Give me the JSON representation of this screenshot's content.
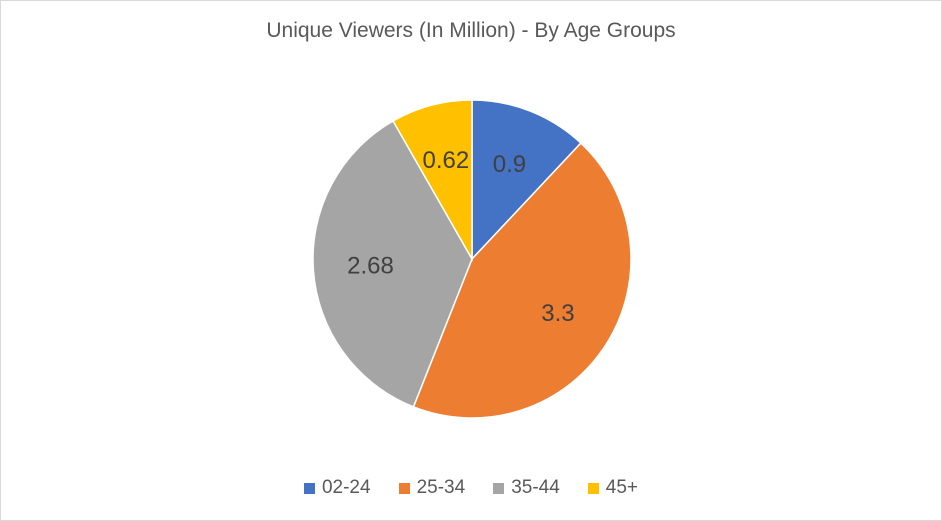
{
  "chart_data": {
    "type": "pie",
    "title": "Unique Viewers (In Million) - By Age Groups",
    "categories": [
      "02-24",
      "25-34",
      "35-44",
      "45+"
    ],
    "values": [
      0.9,
      3.3,
      2.68,
      0.62
    ],
    "labels": [
      "0.9",
      "3.3",
      "2.68",
      "0.62"
    ],
    "colors": [
      "#4472C4",
      "#ED7D31",
      "#A5A5A5",
      "#FFC000"
    ],
    "legend_position": "bottom",
    "start_angle": "top",
    "direction": "clockwise"
  }
}
